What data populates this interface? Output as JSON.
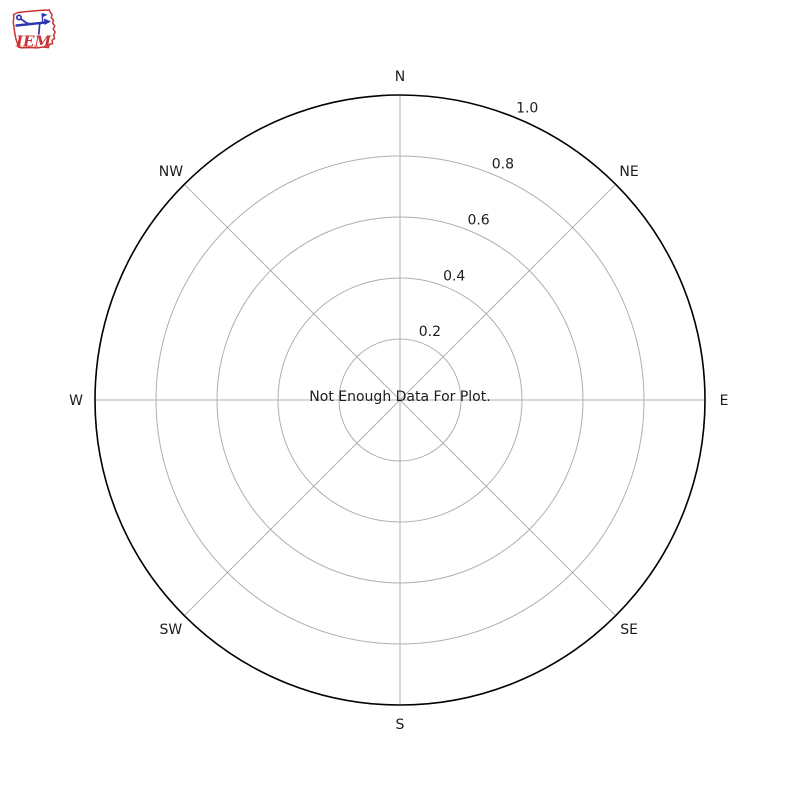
{
  "logo": {
    "text": "IEM",
    "iowa_outline_color": "#c93434",
    "instrument_color": "#2b35ae"
  },
  "chart_data": {
    "type": "windrose",
    "title": "",
    "directions": [
      "N",
      "NE",
      "E",
      "SE",
      "S",
      "SW",
      "W",
      "NW"
    ],
    "radial_ticks": [
      "0.2",
      "0.4",
      "0.6",
      "0.8",
      "1.0"
    ],
    "radial_tick_values": [
      0.2,
      0.4,
      0.6,
      0.8,
      1.0
    ],
    "rlim": [
      0,
      1.0
    ],
    "grid": true,
    "legend_position": "none",
    "series": [],
    "center_message": "Not Enough Data For Plot.",
    "colors": {
      "grid": "#b0b0b0",
      "outline": "#000000",
      "text": "#1c1c1c",
      "background": "#ffffff"
    }
  }
}
